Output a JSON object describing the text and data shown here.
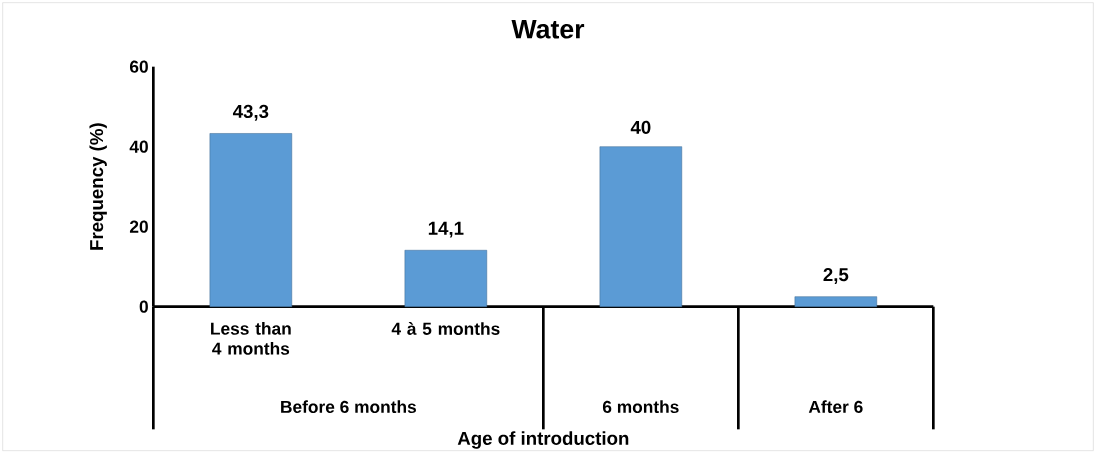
{
  "chart_data": {
    "type": "bar",
    "title": "Water",
    "xlabel": "Age of introduction",
    "ylabel": "Frequency (%)",
    "categories": [
      "Less than 4 months",
      "4 à 5 months",
      null,
      null
    ],
    "values": [
      43.3,
      14.1,
      40,
      2.5
    ],
    "value_labels": [
      "43,3",
      "14,1",
      "40",
      "2,5"
    ],
    "color": "#5b9bd5",
    "ylim": [
      0,
      60
    ],
    "yticks": [
      0,
      20,
      40,
      60
    ],
    "annotations": [
      "Before 6 months",
      "6 months",
      "After 6"
    ]
  }
}
